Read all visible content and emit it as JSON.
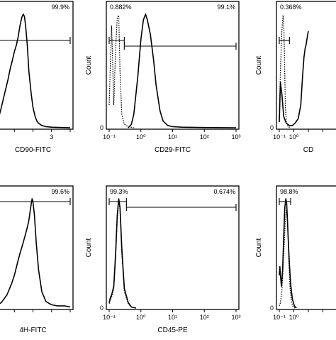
{
  "chart_data": [
    {
      "type": "histogram",
      "xlabel": "CD90-FITC",
      "ylabel": "",
      "x_scale": "log",
      "xlim": [
        0.1,
        1000
      ],
      "x_ticks": [
        "",
        "",
        "",
        "3"
      ],
      "gates": [
        {
          "label": "99.9%",
          "from": 0.1,
          "to": 1000
        }
      ],
      "series": [
        {
          "style": "solid",
          "x": [
            0.1,
            0.15,
            0.2,
            0.3,
            0.45,
            0.6,
            0.8,
            1,
            1.3,
            1.6,
            2,
            2.5,
            3,
            3.5,
            4,
            5,
            6,
            8,
            10,
            13,
            16,
            20,
            30,
            50,
            100,
            1000
          ],
          "y": [
            0.05,
            0.1,
            0.18,
            0.3,
            0.42,
            0.52,
            0.6,
            0.67,
            0.73,
            0.8,
            0.9,
            0.97,
            1.0,
            0.98,
            0.9,
            0.72,
            0.5,
            0.3,
            0.18,
            0.1,
            0.06,
            0.04,
            0.02,
            0.01,
            0.005,
            0
          ]
        }
      ]
    },
    {
      "type": "histogram",
      "xlabel": "CD29-FITC",
      "ylabel": "Count",
      "x_scale": "log",
      "xlim": [
        0.1,
        1000
      ],
      "x_ticks": [
        "10⁻¹",
        "10⁰",
        "10¹",
        "10²",
        "10³"
      ],
      "y_ticks": [
        "0"
      ],
      "gates": [
        {
          "label": "0.882%",
          "from": 0.1,
          "to": 0.3
        },
        {
          "label": "99.1%",
          "from": 0.3,
          "to": 1000
        }
      ],
      "series": [
        {
          "style": "dotted",
          "x": [
            0.1,
            0.11,
            0.12,
            0.14,
            0.16,
            0.18,
            0.2,
            0.22,
            0.25,
            0.3,
            0.4,
            0.6
          ],
          "y": [
            0.2,
            0.6,
            0.9,
            0.2,
            0.7,
            0.97,
            0.99,
            0.5,
            0.12,
            0.03,
            0.01,
            0
          ]
        },
        {
          "style": "solid",
          "x": [
            0.4,
            0.5,
            0.6,
            0.8,
            1,
            1.2,
            1.4,
            1.6,
            2,
            2.5,
            3,
            4,
            5,
            7,
            10,
            20,
            100,
            1000
          ],
          "y": [
            0,
            0.03,
            0.12,
            0.45,
            0.78,
            0.95,
            1.0,
            0.95,
            0.82,
            0.6,
            0.38,
            0.15,
            0.06,
            0.02,
            0.01,
            0.005,
            0.002,
            0
          ]
        }
      ]
    },
    {
      "type": "histogram",
      "xlabel": "CD",
      "ylabel": "Count",
      "x_scale": "log",
      "xlim": [
        0.1,
        1000
      ],
      "x_ticks": [
        "10⁻¹",
        "10⁰",
        "",
        "",
        ""
      ],
      "y_ticks": [
        "0"
      ],
      "gates": [
        {
          "label": "0.368%",
          "from": 0.1,
          "to": 0.5
        }
      ],
      "series": [
        {
          "style": "dotted",
          "x": [
            0.1,
            0.12,
            0.15,
            0.18,
            0.2,
            0.23,
            0.26,
            0.3,
            0.4,
            0.6
          ],
          "y": [
            0.1,
            0.5,
            0.85,
            0.99,
            0.95,
            0.6,
            0.2,
            0.06,
            0.01,
            0
          ]
        },
        {
          "style": "solid",
          "x": [
            0.1,
            0.12,
            0.15,
            0.2,
            0.3,
            0.5,
            0.8,
            1.2,
            2,
            3,
            4,
            5,
            6,
            7,
            8,
            9,
            10
          ],
          "y": [
            0.05,
            0.4,
            0.3,
            0.1,
            0.04,
            0.02,
            0.02,
            0.04,
            0.08,
            0.2,
            0.45,
            0.62,
            0.7,
            0.73,
            0.78,
            0.82,
            0.85
          ]
        }
      ]
    },
    {
      "type": "histogram",
      "xlabel": "4H-FITC",
      "ylabel": "",
      "x_scale": "log",
      "xlim": [
        0.1,
        1000
      ],
      "x_ticks": [
        "",
        "",
        "",
        "",
        ""
      ],
      "gates": [
        {
          "label": "99.6%",
          "from": 0.1,
          "to": 1000
        }
      ],
      "series": [
        {
          "style": "solid",
          "x": [
            0.1,
            0.2,
            0.4,
            0.7,
            1,
            1.5,
            2,
            3,
            4,
            5,
            6,
            7,
            8,
            9,
            10,
            12,
            15,
            20,
            30,
            50,
            100,
            200,
            500,
            1000
          ],
          "y": [
            0.02,
            0.05,
            0.12,
            0.22,
            0.3,
            0.42,
            0.5,
            0.6,
            0.68,
            0.74,
            0.8,
            0.88,
            0.95,
            1.0,
            0.97,
            0.85,
            0.6,
            0.35,
            0.15,
            0.06,
            0.03,
            0.02,
            0.02,
            0.01
          ]
        }
      ]
    },
    {
      "type": "histogram",
      "xlabel": "CD45-PE",
      "ylabel": "Count",
      "x_scale": "log",
      "xlim": [
        0.1,
        1000
      ],
      "x_ticks": [
        "10⁻¹",
        "10⁰",
        "10¹",
        "10²",
        "10³"
      ],
      "y_ticks": [
        "0"
      ],
      "gates": [
        {
          "label": "99.3%",
          "from": 0.1,
          "to": 0.35
        },
        {
          "label": "0.674%",
          "from": 0.35,
          "to": 1000
        }
      ],
      "series": [
        {
          "style": "dotted",
          "x": [
            0.1,
            0.11,
            0.12,
            0.14,
            0.16,
            0.18,
            0.2,
            0.22,
            0.25,
            0.3,
            0.4,
            0.5,
            0.7
          ],
          "y": [
            0.04,
            0.08,
            0.1,
            0.18,
            0.45,
            0.8,
            0.97,
            0.9,
            0.5,
            0.15,
            0.04,
            0.01,
            0
          ]
        },
        {
          "style": "solid",
          "x": [
            0.1,
            0.11,
            0.12,
            0.14,
            0.16,
            0.18,
            0.2,
            0.22,
            0.25,
            0.3,
            0.4,
            0.5,
            0.7
          ],
          "y": [
            0.05,
            0.1,
            0.12,
            0.2,
            0.5,
            0.85,
            1.0,
            0.92,
            0.55,
            0.18,
            0.05,
            0.01,
            0
          ]
        }
      ]
    },
    {
      "type": "histogram",
      "xlabel": "",
      "ylabel": "Count",
      "x_scale": "log",
      "xlim": [
        0.1,
        1000
      ],
      "x_ticks": [
        "10⁻¹",
        "10⁰",
        "",
        "",
        ""
      ],
      "y_ticks": [
        "0"
      ],
      "gates": [
        {
          "label": "98.8%",
          "from": 0.1,
          "to": 0.6
        }
      ],
      "series": [
        {
          "style": "dotted",
          "x": [
            0.1,
            0.12,
            0.15,
            0.18,
            0.22,
            0.27,
            0.32,
            0.38,
            0.45,
            0.55,
            0.7,
            0.9,
            1.2
          ],
          "y": [
            0.02,
            0.05,
            0.15,
            0.35,
            0.6,
            0.82,
            0.9,
            0.75,
            0.45,
            0.18,
            0.05,
            0.01,
            0
          ]
        },
        {
          "style": "solid",
          "x": [
            0.1,
            0.11,
            0.12,
            0.14,
            0.17,
            0.2,
            0.24,
            0.28,
            0.32,
            0.36,
            0.42,
            0.5,
            0.6,
            0.8,
            1.1,
            1.5
          ],
          "y": [
            0.3,
            0.38,
            0.3,
            0.2,
            0.35,
            0.65,
            0.92,
            1.0,
            0.96,
            0.82,
            0.6,
            0.4,
            0.22,
            0.08,
            0.02,
            0
          ]
        }
      ]
    }
  ]
}
